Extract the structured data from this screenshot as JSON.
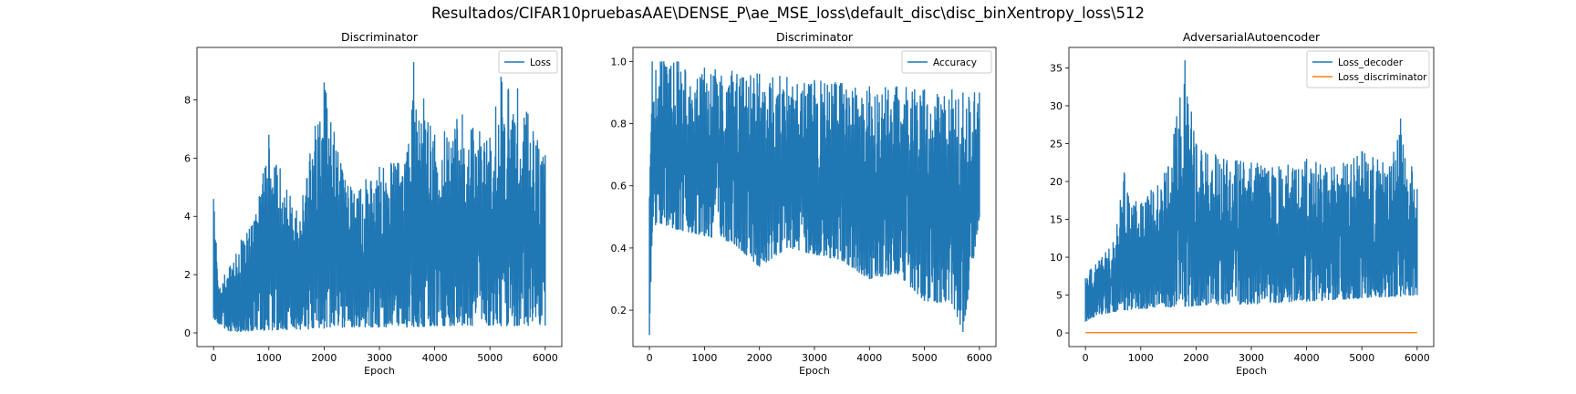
{
  "figure": {
    "suptitle": "Resultados/CIFAR10pruebasAAE\\DENSE_P\\ae_MSE_loss\\default_disc\\disc_binXentropy_loss\\512"
  },
  "colors": {
    "series_blue": "#1f77b4",
    "series_orange": "#ff7f0e",
    "axis": "#000000",
    "legend_border": "#cccccc"
  },
  "chart_data": [
    {
      "type": "line",
      "title": "Discriminator",
      "xlabel": "Epoch",
      "ylabel": "",
      "xlim": [
        -300,
        6300
      ],
      "ylim": [
        -0.47,
        9.8
      ],
      "xticks": [
        0,
        1000,
        2000,
        3000,
        4000,
        5000,
        6000
      ],
      "yticks": [
        0,
        2,
        4,
        6,
        8
      ],
      "legend_position": "top-right",
      "grid": false,
      "series": [
        {
          "name": "Loss",
          "color": "#1f77b4",
          "x": [
            0,
            100,
            200,
            300,
            500,
            700,
            1000,
            1500,
            2000,
            2500,
            3000,
            3500,
            3620,
            4000,
            4500,
            5000,
            5200,
            5500,
            6000
          ],
          "y_low": [
            0.5,
            0.3,
            0.15,
            0.05,
            0.05,
            0.08,
            0.1,
            0.12,
            0.15,
            0.2,
            0.2,
            0.2,
            0.2,
            0.25,
            0.25,
            0.25,
            0.25,
            0.25,
            0.25
          ],
          "y_high": [
            4.6,
            1.5,
            2.0,
            2.3,
            3.2,
            3.7,
            6.8,
            4.2,
            8.6,
            4.9,
            5.7,
            6.2,
            9.3,
            6.8,
            7.5,
            6.7,
            8.8,
            8.4,
            6.1
          ]
        }
      ]
    },
    {
      "type": "line",
      "title": "Discriminator",
      "xlabel": "Epoch",
      "ylabel": "",
      "xlim": [
        -300,
        6300
      ],
      "ylim": [
        0.083,
        1.045
      ],
      "xticks": [
        0,
        1000,
        2000,
        3000,
        4000,
        5000,
        6000
      ],
      "yticks": [
        0.2,
        0.4,
        0.6,
        0.8,
        1.0
      ],
      "legend_position": "top-right",
      "grid": false,
      "series": [
        {
          "name": "Accuracy",
          "color": "#1f77b4",
          "x": [
            0,
            50,
            200,
            500,
            1000,
            1500,
            2000,
            2500,
            3000,
            3500,
            4000,
            4500,
            5000,
            5500,
            5700,
            6000
          ],
          "y_low": [
            0.12,
            0.45,
            0.48,
            0.46,
            0.44,
            0.42,
            0.34,
            0.4,
            0.38,
            0.36,
            0.3,
            0.32,
            0.23,
            0.22,
            0.13,
            0.5
          ],
          "y_high": [
            0.56,
            1.0,
            1.0,
            1.0,
            0.98,
            0.97,
            0.96,
            0.95,
            0.94,
            0.93,
            0.92,
            0.92,
            0.91,
            0.91,
            0.9,
            0.9
          ]
        }
      ]
    },
    {
      "type": "line",
      "title": "AdversarialAutoencoder",
      "xlabel": "Epoch",
      "ylabel": "",
      "xlim": [
        -300,
        6300
      ],
      "ylim": [
        -1.8,
        37.7
      ],
      "xticks": [
        0,
        1000,
        2000,
        3000,
        4000,
        5000,
        6000
      ],
      "yticks": [
        0,
        5,
        10,
        15,
        20,
        25,
        30,
        35
      ],
      "legend_position": "top-right",
      "grid": false,
      "series": [
        {
          "name": "Loss_decoder",
          "color": "#1f77b4",
          "x": [
            0,
            100,
            300,
            500,
            700,
            1000,
            1500,
            1800,
            2000,
            2500,
            3000,
            3500,
            4000,
            4500,
            5000,
            5500,
            5700,
            6000
          ],
          "y_low": [
            1.5,
            2.0,
            2.5,
            2.8,
            3.0,
            3.2,
            3.4,
            3.5,
            3.6,
            3.8,
            3.8,
            4.0,
            4.2,
            4.4,
            4.6,
            4.8,
            4.8,
            5.0
          ],
          "y_high": [
            7.2,
            8.5,
            10.0,
            12.0,
            21.2,
            17.0,
            22.0,
            36.0,
            25.0,
            23.0,
            22.5,
            22.0,
            23.0,
            22.0,
            24.0,
            22.0,
            28.3,
            19.0
          ]
        },
        {
          "name": "Loss_discriminator",
          "color": "#ff7f0e",
          "x": [
            0,
            6000
          ],
          "y": [
            0.05,
            0.05
          ]
        }
      ]
    }
  ]
}
